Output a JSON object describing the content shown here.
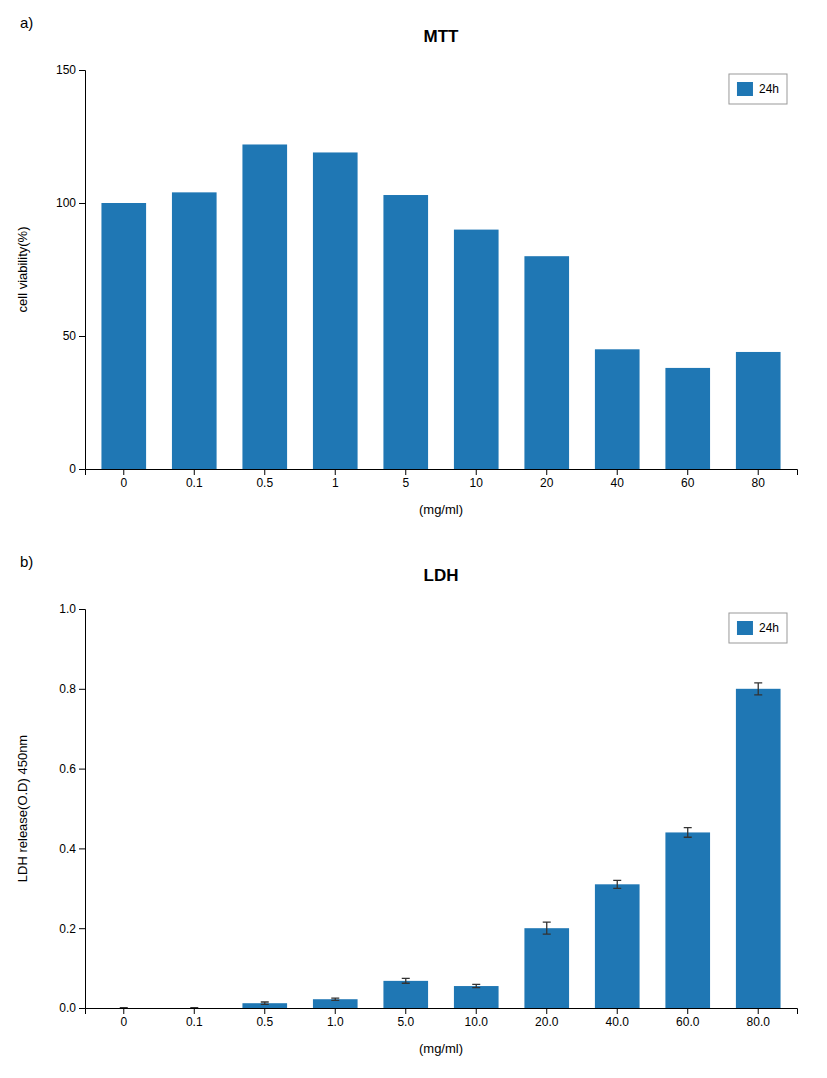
{
  "chart_data": [
    {
      "type": "bar",
      "title": "MTT",
      "annotations": [
        "a)"
      ],
      "xlabel": "(mg/ml)",
      "ylabel": "cell viability(%)",
      "categories": [
        "0",
        "0.1",
        "0.5",
        "1",
        "5",
        "10",
        "20",
        "40",
        "60",
        "80"
      ],
      "series": [
        {
          "name": "24h",
          "values": [
            100,
            104,
            122,
            119,
            103,
            90,
            80,
            45,
            38,
            44
          ]
        }
      ],
      "ylim": [
        0,
        150
      ],
      "yticks": [
        0,
        50,
        100,
        150
      ],
      "grid": false,
      "legend": "upper right"
    },
    {
      "type": "bar",
      "title": "LDH",
      "annotations": [
        "b)"
      ],
      "xlabel": "(mg/ml)",
      "ylabel": "LDH release(O.D) 450nm",
      "categories": [
        "0",
        "0.1",
        "0.5",
        "1.0",
        "5.0",
        "10.0",
        "20.0",
        "40.0",
        "60.0",
        "80.0"
      ],
      "series": [
        {
          "name": "24h",
          "values": [
            0.0,
            0.0,
            0.012,
            0.022,
            0.068,
            0.055,
            0.2,
            0.31,
            0.44,
            0.8
          ],
          "errors": [
            0.001,
            0.001,
            0.003,
            0.003,
            0.006,
            0.004,
            0.015,
            0.01,
            0.012,
            0.015
          ]
        }
      ],
      "ylim": [
        0,
        1.0
      ],
      "yticks": [
        {
          "value": 0.0,
          "label": "0.0"
        },
        {
          "value": 0.2,
          "label": "0.2"
        },
        {
          "value": 0.4,
          "label": "0.4"
        },
        {
          "value": 0.6,
          "label": "0.6"
        },
        {
          "value": 0.8,
          "label": "0.8"
        },
        {
          "value": 1.0,
          "label": "1.0"
        }
      ],
      "grid": false,
      "legend": "upper right"
    }
  ]
}
